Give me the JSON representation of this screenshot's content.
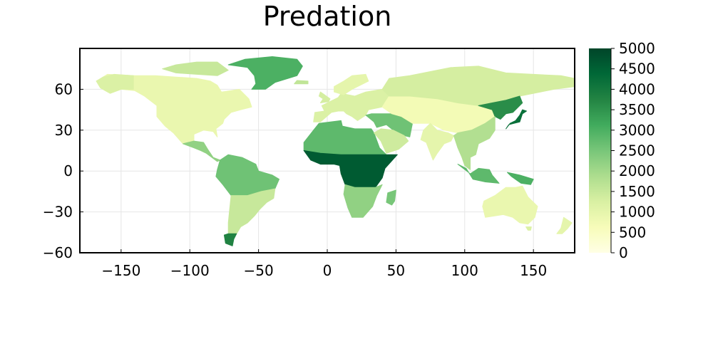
{
  "chart_data": {
    "type": "heatmap",
    "title": "Predation",
    "xlabel": "",
    "ylabel": "",
    "xlim": [
      -180,
      180
    ],
    "ylim": [
      -60,
      90
    ],
    "xticks": [
      -150,
      -100,
      -50,
      0,
      50,
      100,
      150
    ],
    "xtick_labels": [
      "−150",
      "−100",
      "−50",
      "0",
      "50",
      "100",
      "150"
    ],
    "yticks": [
      -60,
      -30,
      0,
      30,
      60
    ],
    "ytick_labels": [
      "−60",
      "−30",
      "0",
      "30",
      "60"
    ],
    "grid": true,
    "colorbar": {
      "min": 0,
      "max": 5000,
      "ticks": [
        0,
        500,
        1000,
        1500,
        2000,
        2500,
        3000,
        3500,
        4000,
        4500,
        5000
      ],
      "tick_labels": [
        "0",
        "500",
        "1000",
        "1500",
        "2000",
        "2500",
        "3000",
        "3500",
        "4000",
        "4500",
        "5000"
      ],
      "colormap": "YlGn",
      "stops": [
        "#ffffe5",
        "#f7fcb9",
        "#d9f0a3",
        "#addd8e",
        "#78c679",
        "#41ab5d",
        "#238443",
        "#006837",
        "#004529"
      ]
    },
    "regions": [
      {
        "name": "North America",
        "value": 900
      },
      {
        "name": "Alaska",
        "value": 1200
      },
      {
        "name": "Canadian Arctic Archipelago",
        "value": 1500
      },
      {
        "name": "Greenland",
        "value": 3000
      },
      {
        "name": "Central America",
        "value": 2200
      },
      {
        "name": "South America (Amazon)",
        "value": 2600
      },
      {
        "name": "South America (south)",
        "value": 1500
      },
      {
        "name": "Patagonia",
        "value": 3800
      },
      {
        "name": "Europe",
        "value": 1200
      },
      {
        "name": "Scandinavia",
        "value": 1000
      },
      {
        "name": "North Africa",
        "value": 2800
      },
      {
        "name": "Central Africa",
        "value": 4600
      },
      {
        "name": "Southern Africa",
        "value": 2200
      },
      {
        "name": "Madagascar",
        "value": 2500
      },
      {
        "name": "Middle East",
        "value": 2600
      },
      {
        "name": "Arabian Peninsula",
        "value": 1400
      },
      {
        "name": "Central Asia",
        "value": 700
      },
      {
        "name": "Siberia",
        "value": 1300
      },
      {
        "name": "Northeast Asia",
        "value": 3600
      },
      {
        "name": "India",
        "value": 1000
      },
      {
        "name": "Southeast Asia",
        "value": 1800
      },
      {
        "name": "Japan",
        "value": 4200
      },
      {
        "name": "Indonesia",
        "value": 2800
      },
      {
        "name": "New Guinea",
        "value": 3000
      },
      {
        "name": "Australia",
        "value": 900
      },
      {
        "name": "New Zealand",
        "value": 1000
      }
    ]
  }
}
